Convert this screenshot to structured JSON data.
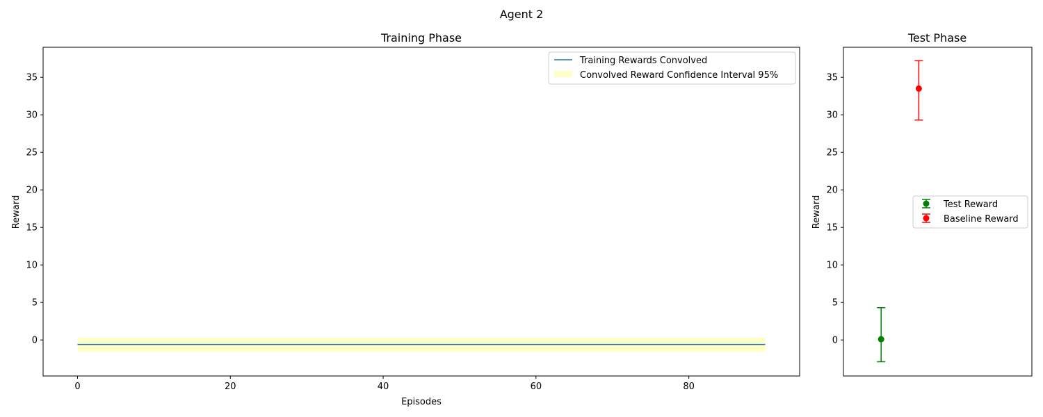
{
  "suptitle": "Agent 2",
  "chart_data": [
    {
      "type": "line",
      "title": "Training Phase",
      "xlabel": "Episodes",
      "ylabel": "Reward",
      "xlim": [
        -4.5,
        94.5
      ],
      "ylim": [
        -4.8,
        39.0
      ],
      "xticks": [
        0,
        20,
        40,
        60,
        80
      ],
      "yticks": [
        0,
        5,
        10,
        15,
        20,
        25,
        30,
        35
      ],
      "grid": false,
      "legend": "top-right",
      "series": [
        {
          "name": "Training Rewards Convolved",
          "color": "#1f77b4",
          "x": [
            0,
            90
          ],
          "y": [
            -0.6,
            -0.6
          ]
        }
      ],
      "band": {
        "name": "Convolved Reward Confidence Interval 95%",
        "color": "#ffffc8",
        "x": [
          0,
          90
        ],
        "lower": [
          -1.6,
          -1.6
        ],
        "upper": [
          0.3,
          0.3
        ]
      }
    },
    {
      "type": "scatter",
      "title": "Test Phase",
      "ylabel": "Reward",
      "xlim": [
        -0.4,
        1.6
      ],
      "ylim": [
        -4.8,
        39.0
      ],
      "yticks": [
        0,
        5,
        10,
        15,
        20,
        25,
        30,
        35
      ],
      "grid": false,
      "legend": "center-right",
      "points": [
        {
          "name": "Test Reward",
          "color": "#008000",
          "x": 0,
          "y": 0.1,
          "err_low": -2.9,
          "err_high": 4.3
        },
        {
          "name": "Baseline Reward",
          "color": "#ff0000",
          "x": 0.4,
          "y": 33.5,
          "err_low": 29.3,
          "err_high": 37.2
        }
      ]
    }
  ]
}
